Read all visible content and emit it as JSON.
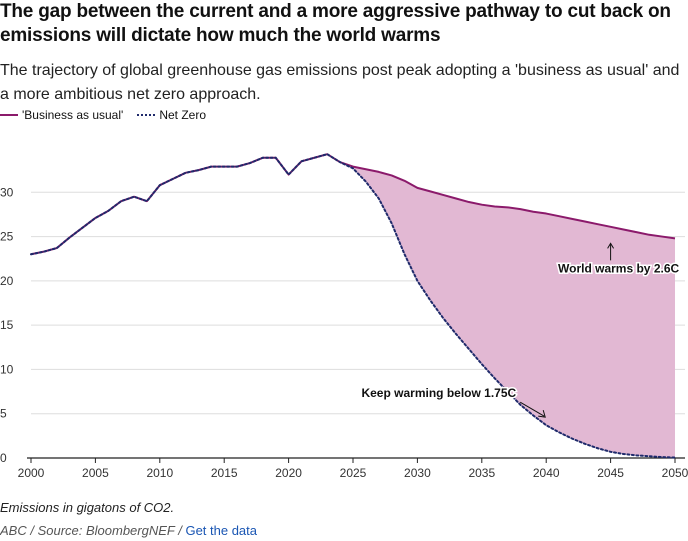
{
  "title": "The gap between the current and a more aggressive pathway to cut back on emissions will dictate how much the world warms",
  "subtitle": "The trajectory of global greenhouse gas emissions post peak adopting a 'business as usual' and a more ambitious net zero approach.",
  "note": "Emissions in gigatons of CO2.",
  "source": {
    "prefix": "ABC / Source: BloombergNEF / ",
    "link_label": "Get the data"
  },
  "colors": {
    "bau": "#8b1a6b",
    "netzero": "#1f2a6b",
    "gap_fill": "#e2b8d3",
    "grid": "#dddddd",
    "axis": "#222222"
  },
  "chart_data": {
    "type": "line",
    "x": [
      2000,
      2001,
      2002,
      2003,
      2004,
      2005,
      2006,
      2007,
      2008,
      2009,
      2010,
      2011,
      2012,
      2013,
      2014,
      2015,
      2016,
      2017,
      2018,
      2019,
      2020,
      2021,
      2022,
      2023,
      2024,
      2025,
      2026,
      2027,
      2028,
      2029,
      2030,
      2031,
      2032,
      2033,
      2034,
      2035,
      2036,
      2037,
      2038,
      2039,
      2040,
      2041,
      2042,
      2043,
      2044,
      2045,
      2046,
      2047,
      2048,
      2049,
      2050
    ],
    "series": [
      {
        "name": "'Business as usual'",
        "style": "solid",
        "values": [
          23.0,
          23.3,
          23.7,
          24.9,
          26.0,
          27.1,
          27.9,
          29.0,
          29.5,
          29.0,
          30.8,
          31.5,
          32.2,
          32.5,
          32.9,
          32.9,
          32.9,
          33.3,
          33.9,
          33.9,
          32.0,
          33.5,
          33.9,
          34.3,
          33.4,
          32.9,
          32.6,
          32.3,
          31.9,
          31.3,
          30.5,
          30.1,
          29.7,
          29.3,
          28.9,
          28.6,
          28.4,
          28.3,
          28.1,
          27.8,
          27.6,
          27.3,
          27.0,
          26.7,
          26.4,
          26.1,
          25.8,
          25.5,
          25.2,
          25.0,
          24.8
        ]
      },
      {
        "name": "Net Zero",
        "style": "dotted",
        "values": [
          23.0,
          23.3,
          23.7,
          24.9,
          26.0,
          27.1,
          27.9,
          29.0,
          29.5,
          29.0,
          30.8,
          31.5,
          32.2,
          32.5,
          32.9,
          32.9,
          32.9,
          33.3,
          33.9,
          33.9,
          32.0,
          33.5,
          33.9,
          34.3,
          33.4,
          32.7,
          31.2,
          29.3,
          26.5,
          23.0,
          20.0,
          17.8,
          15.8,
          14.0,
          12.3,
          10.6,
          9.0,
          7.5,
          6.0,
          4.8,
          3.7,
          2.9,
          2.2,
          1.6,
          1.1,
          0.7,
          0.45,
          0.3,
          0.2,
          0.1,
          0.05
        ]
      }
    ],
    "ylim": [
      0,
      35
    ],
    "xlim": [
      2000,
      2050
    ],
    "y_ticks": [
      0,
      5,
      10,
      15,
      20,
      25,
      30
    ],
    "x_ticks": [
      2000,
      2005,
      2010,
      2015,
      2020,
      2025,
      2030,
      2035,
      2040,
      2045,
      2050
    ],
    "grid": true,
    "legend_position": "top-left",
    "annotations": [
      {
        "text": "World warms by 2.6C",
        "target_x": 2045,
        "target_y": 24.8
      },
      {
        "text": "Keep warming below 1.75C",
        "target_x": 2040,
        "target_y": 4.5
      }
    ]
  }
}
